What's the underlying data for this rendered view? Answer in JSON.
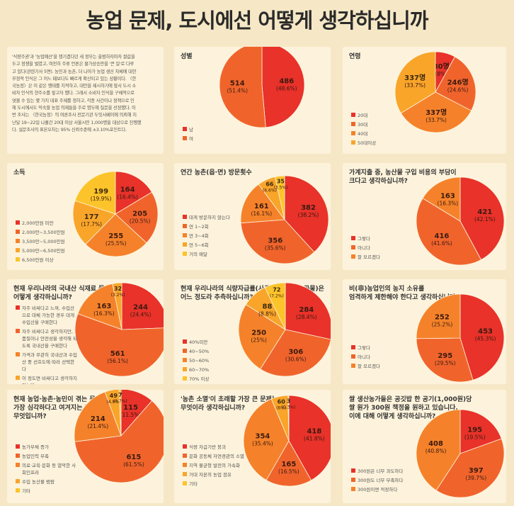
{
  "page_title": "농업 문제, 도시에선 어떻게 생각하십니까",
  "intro_lines": [
    "'식량주권'과 '농업예산'을 챙기겠다던 새 정부는 출범하자마자 쌀값을",
    "두고 정쟁을 벌였고, 여전히 주류 언론은 물가상승만을 '큰 일'로 다루",
    "고 있다(관련기사 5면). 농민과 농촌, 더 나아가 농업 생산 자체에 대한",
    "부정적 인식은 그 어느 때보다도 빠르게 확산되고 있는 상황이다. 〈한",
    "국농정〉은 이 같은 행태를 지적하고, 대안을 제시하기에 앞서 도시 소",
    "비자 인식의 현주소를 짚고자 했다. 그래서 소비자 인식을 구체적으로",
    "엿볼 수 있는 몇 가지 대표 주제를 정하고, 각종 사건이나 정책으로 인",
    "해 도시에서도 익숙할 농업 의제들을 주로 염두에 질문을 선정했다. 이",
    "번 조사는 〈한국농정〉의 여론조사 전문기관 두잇서베이에 의뢰해 지",
    "난달 19~22일 나흘간 20대 이상 서울시민 1,000명을 대상으로 진행했",
    "다. 설문조사의 표본오차는 95% 신뢰수준에 ±3.10%포인트다."
  ],
  "chart_data": [
    {
      "type": "pie",
      "id": "gender",
      "title": [
        "성별"
      ],
      "categories": [
        "남",
        "여"
      ],
      "values": [
        486,
        514
      ],
      "percents": [
        "48.6%",
        "51.4%"
      ],
      "colors": [
        "#e8322a",
        "#f0642c"
      ]
    },
    {
      "type": "pie",
      "id": "age",
      "title": [
        "연령"
      ],
      "categories": [
        "20대",
        "30대",
        "40대",
        "50대이상"
      ],
      "values": [
        80,
        246,
        337,
        337
      ],
      "percents": [
        "8%",
        "24.6%",
        "33.7%",
        "33.7%"
      ],
      "colors": [
        "#e8322a",
        "#f0642c",
        "#f5822a",
        "#f9a52a"
      ],
      "label_suffix": "명"
    },
    {
      "type": "pie",
      "id": "income",
      "title": [
        "소득"
      ],
      "categories": [
        "2,000만원 미만",
        "2,000만~3,500만원",
        "3,500만~5,000만원",
        "5,000만~6,500만원",
        "6,500만원 이상"
      ],
      "values": [
        164,
        205,
        255,
        177,
        199
      ],
      "percents": [
        "16.4%",
        "20.5%",
        "25.5%",
        "17.7%",
        "19.9%"
      ],
      "colors": [
        "#e8322a",
        "#f0642c",
        "#f5822a",
        "#f9a52a",
        "#fcc42a"
      ]
    },
    {
      "type": "pie",
      "id": "visits",
      "title": [
        "연간 농촌(읍·면) 방문횟수"
      ],
      "categories": [
        "대게 방문하지 않는다",
        "연 1~2회",
        "연 3~4회",
        "연 5~6회",
        "거의 매달"
      ],
      "values": [
        382,
        356,
        161,
        66,
        35
      ],
      "percents": [
        "38.2%",
        "35.6%",
        "16.1%",
        "6.6%",
        "3.5%"
      ],
      "colors": [
        "#e8322a",
        "#f0642c",
        "#f5822a",
        "#f9a52a",
        "#fcc42a"
      ]
    },
    {
      "type": "pie",
      "id": "burden",
      "title": [
        "가계지출 중, 농산물 구입 비용의 부담이",
        "크다고 생각하십니까?"
      ],
      "categories": [
        "그렇다",
        "아니다",
        "잘 모르겠다"
      ],
      "values": [
        421,
        416,
        163
      ],
      "percents": [
        "42.1%",
        "41.6%",
        "16.3%"
      ],
      "colors": [
        "#e8322a",
        "#f0642c",
        "#f5822a"
      ]
    },
    {
      "type": "pie",
      "id": "price",
      "title": [
        "현재 우리나라의 국내산 식재료 물가를",
        "어떻게 생각하십니까?"
      ],
      "categories": [
        "자주 비싸다고 느껴, 수입산으로 대체 가능한 경우 대게 수입산을 구매한다",
        "자주 비싸다고 생각하지만, 품질이나 안전성을 생각해 되도록 국내산을 구매한다",
        "가격과 무관히 국내산과 수입산 중 선호도에 따라 선택한다",
        "이 정도면 비싸다고 생각하지 않는다"
      ],
      "values": [
        244,
        561,
        163,
        32
      ],
      "percents": [
        "24.4%",
        "56.1%",
        "16.3%",
        "3.2%"
      ],
      "colors": [
        "#e8322a",
        "#f0642c",
        "#f5822a",
        "#f9a52a"
      ]
    },
    {
      "type": "pie",
      "id": "selfsuff",
      "title": [
        "현재 우리나라의 식량자급률(사료용을 제외한 곡물)은",
        "어느 정도라 추측하십니까?"
      ],
      "categories": [
        "40%미만",
        "40~50%",
        "50~60%",
        "60~70%",
        "70% 이상"
      ],
      "values": [
        284,
        306,
        250,
        88,
        72
      ],
      "percents": [
        "28.4%",
        "30.6%",
        "25%",
        "8.8%",
        "7.2%"
      ],
      "colors": [
        "#e8322a",
        "#f0642c",
        "#f5822a",
        "#f9a52a",
        "#fcc42a"
      ]
    },
    {
      "type": "pie",
      "id": "farmland",
      "title": [
        "비(非)농업인의 농지 소유를",
        "엄격하게 제한해야 한다고 생각하십니까?"
      ],
      "categories": [
        "그렇다",
        "아니다",
        "잘 모르겠다"
      ],
      "values": [
        453,
        295,
        252
      ],
      "percents": [
        "45.3%",
        "29.5%",
        "25.2%"
      ],
      "colors": [
        "#e8322a",
        "#f0642c",
        "#f5822a"
      ]
    },
    {
      "type": "pie",
      "id": "problems",
      "title": [
        "현재 농업·농촌·농민이 겪는 문제 중",
        "가장 심각하다고 여겨지는 것은",
        "무엇입니까?"
      ],
      "categories": [
        "농가부채 증가",
        "농업인력 부족",
        "의료·교육·문화 등 열악한 사회인프라",
        "수입 농산물 범람",
        "기타"
      ],
      "values": [
        115,
        615,
        214,
        49,
        7
      ],
      "percents": [
        "11.5%",
        "61.5%",
        "21.4%",
        "4.9%",
        "0.7%"
      ],
      "colors": [
        "#e8322a",
        "#f0642c",
        "#f5822a",
        "#f9a52a",
        "#fcc42a"
      ]
    },
    {
      "type": "pie",
      "id": "extinction",
      "title": [
        "'농촌 소멸'이 초래할 가장 큰 문제는",
        "무엇이라 생각하십니까?"
      ],
      "categories": [
        "식량 자급기반 붕괴",
        "문화 공동체 자연경관의 소멸",
        "지역 불균형 발전의 가속화",
        "거대 자본의 농업 점유",
        "기타"
      ],
      "values": [
        418,
        165,
        354,
        60,
        3
      ],
      "percents": [
        "41.8%",
        "16.5%",
        "35.4%",
        "6%",
        "0.3%"
      ],
      "colors": [
        "#e8322a",
        "#f0642c",
        "#f5822a",
        "#f9a52a",
        "#fcc42a"
      ]
    },
    {
      "type": "pie",
      "id": "rice",
      "title": [
        "쌀 생산농가들은 공깃밥 한 공기(1,000원)당",
        "쌀 원가 300원 책정을 원하고 있습니다.",
        "이에 대해 어떻게 생각하십니까?"
      ],
      "categories": [
        "300원은 너무 과도하다",
        "300원도 너무 부족하다",
        "300원이면 적정하다"
      ],
      "values": [
        195,
        397,
        408
      ],
      "percents": [
        "19.5%",
        "39.7%",
        "40.8%"
      ],
      "colors": [
        "#e8322a",
        "#f0642c",
        "#f5822a"
      ]
    }
  ]
}
